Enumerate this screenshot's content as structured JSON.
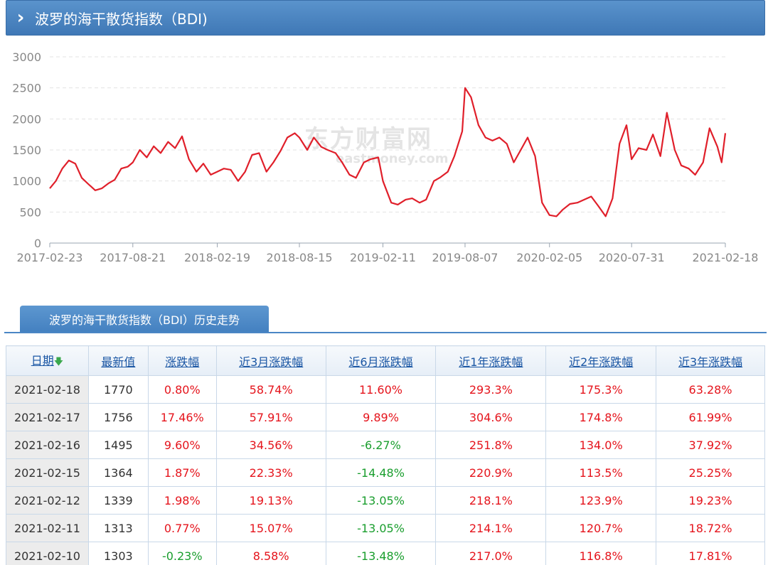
{
  "header": {
    "title": "波罗的海干散货指数（BDI)"
  },
  "colors": {
    "line": "#e01f2a",
    "up": "#e5141c",
    "down": "#1a9e2e",
    "accent": "#4a86c5"
  },
  "watermark": {
    "cn": "东方财富网",
    "en": "eastmoney.com"
  },
  "chart_data": {
    "type": "line",
    "ylim": [
      0,
      3000
    ],
    "yticks": [
      0,
      500,
      1000,
      1500,
      2000,
      2500,
      3000
    ],
    "xticks": [
      "2017-02-23",
      "2017-08-21",
      "2018-02-19",
      "2018-08-15",
      "2019-02-11",
      "2019-08-07",
      "2020-02-05",
      "2020-07-31",
      "2021-02-18"
    ],
    "grid": true,
    "series": [
      {
        "x": [
          "2017-02-23",
          "2017-03-08",
          "2017-03-22",
          "2017-04-05",
          "2017-04-19",
          "2017-05-03",
          "2017-05-17",
          "2017-06-01",
          "2017-06-15",
          "2017-06-29",
          "2017-07-13",
          "2017-07-27",
          "2017-08-10",
          "2017-08-21",
          "2017-09-05",
          "2017-09-20",
          "2017-10-05",
          "2017-10-20",
          "2017-11-05",
          "2017-11-20",
          "2017-12-05",
          "2017-12-20",
          "2018-01-05",
          "2018-01-20",
          "2018-02-05",
          "2018-02-19",
          "2018-03-05",
          "2018-03-20",
          "2018-04-05",
          "2018-04-20",
          "2018-05-05",
          "2018-05-20",
          "2018-06-05",
          "2018-06-20",
          "2018-07-05",
          "2018-07-20",
          "2018-08-05",
          "2018-08-15",
          "2018-09-01",
          "2018-09-15",
          "2018-10-01",
          "2018-10-15",
          "2018-11-01",
          "2018-11-15",
          "2018-12-01",
          "2018-12-15",
          "2019-01-01",
          "2019-01-15",
          "2019-02-01",
          "2019-02-11",
          "2019-03-01",
          "2019-03-15",
          "2019-04-01",
          "2019-04-15",
          "2019-05-01",
          "2019-05-15",
          "2019-06-01",
          "2019-06-15",
          "2019-07-01",
          "2019-07-15",
          "2019-08-01",
          "2019-08-07",
          "2019-08-20",
          "2019-09-05",
          "2019-09-20",
          "2019-10-05",
          "2019-10-20",
          "2019-11-05",
          "2019-11-20",
          "2019-12-05",
          "2019-12-20",
          "2020-01-05",
          "2020-01-20",
          "2020-02-05",
          "2020-02-20",
          "2020-03-05",
          "2020-03-20",
          "2020-04-05",
          "2020-04-20",
          "2020-05-05",
          "2020-05-20",
          "2020-06-05",
          "2020-06-20",
          "2020-07-05",
          "2020-07-20",
          "2020-07-31",
          "2020-08-15",
          "2020-09-01",
          "2020-09-15",
          "2020-10-01",
          "2020-10-15",
          "2020-11-01",
          "2020-11-15",
          "2020-12-01",
          "2020-12-15",
          "2021-01-01",
          "2021-01-15",
          "2021-02-01",
          "2021-02-10",
          "2021-02-18"
        ],
        "values": [
          880,
          1000,
          1200,
          1330,
          1280,
          1050,
          950,
          850,
          880,
          960,
          1020,
          1200,
          1230,
          1300,
          1500,
          1380,
          1560,
          1450,
          1630,
          1530,
          1720,
          1350,
          1150,
          1280,
          1100,
          1150,
          1200,
          1180,
          1000,
          1150,
          1420,
          1450,
          1150,
          1300,
          1480,
          1700,
          1770,
          1700,
          1500,
          1700,
          1550,
          1500,
          1450,
          1300,
          1100,
          1050,
          1300,
          1350,
          1380,
          1000,
          650,
          620,
          700,
          720,
          650,
          700,
          1000,
          1060,
          1150,
          1400,
          1800,
          2500,
          2350,
          1900,
          1700,
          1650,
          1700,
          1600,
          1300,
          1500,
          1700,
          1400,
          650,
          450,
          430,
          540,
          630,
          650,
          700,
          750,
          600,
          430,
          720,
          1600,
          1900,
          1350,
          1530,
          1500,
          1750,
          1400,
          2100,
          1500,
          1250,
          1200,
          1100,
          1300,
          1850,
          1550,
          1300,
          1770
        ]
      }
    ]
  },
  "history": {
    "tab_label": "波罗的海干散货指数（BDI）历史走势",
    "headers": [
      "日期",
      "最新值",
      "涨跌幅",
      "近3月涨跌幅",
      "近6月涨跌幅",
      "近1年涨跌幅",
      "近2年涨跌幅",
      "近3年涨跌幅"
    ],
    "sort_indicator": "🡇",
    "rows": [
      {
        "date": "2021-02-18",
        "value": "1770",
        "chg": "0.80%",
        "m3": "58.74%",
        "m6": "11.60%",
        "y1": "293.3%",
        "y2": "175.3%",
        "y3": "63.28%"
      },
      {
        "date": "2021-02-17",
        "value": "1756",
        "chg": "17.46%",
        "m3": "57.91%",
        "m6": "9.89%",
        "y1": "304.6%",
        "y2": "174.8%",
        "y3": "61.99%"
      },
      {
        "date": "2021-02-16",
        "value": "1495",
        "chg": "9.60%",
        "m3": "34.56%",
        "m6": "-6.27%",
        "y1": "251.8%",
        "y2": "134.0%",
        "y3": "37.92%"
      },
      {
        "date": "2021-02-15",
        "value": "1364",
        "chg": "1.87%",
        "m3": "22.33%",
        "m6": "-14.48%",
        "y1": "220.9%",
        "y2": "113.5%",
        "y3": "25.25%"
      },
      {
        "date": "2021-02-12",
        "value": "1339",
        "chg": "1.98%",
        "m3": "19.13%",
        "m6": "-13.05%",
        "y1": "218.1%",
        "y2": "123.9%",
        "y3": "19.23%"
      },
      {
        "date": "2021-02-11",
        "value": "1313",
        "chg": "0.77%",
        "m3": "15.07%",
        "m6": "-13.05%",
        "y1": "214.1%",
        "y2": "120.7%",
        "y3": "18.72%"
      },
      {
        "date": "2021-02-10",
        "value": "1303",
        "chg": "-0.23%",
        "m3": "8.58%",
        "m6": "-13.48%",
        "y1": "217.0%",
        "y2": "116.8%",
        "y3": "17.81%"
      }
    ]
  }
}
